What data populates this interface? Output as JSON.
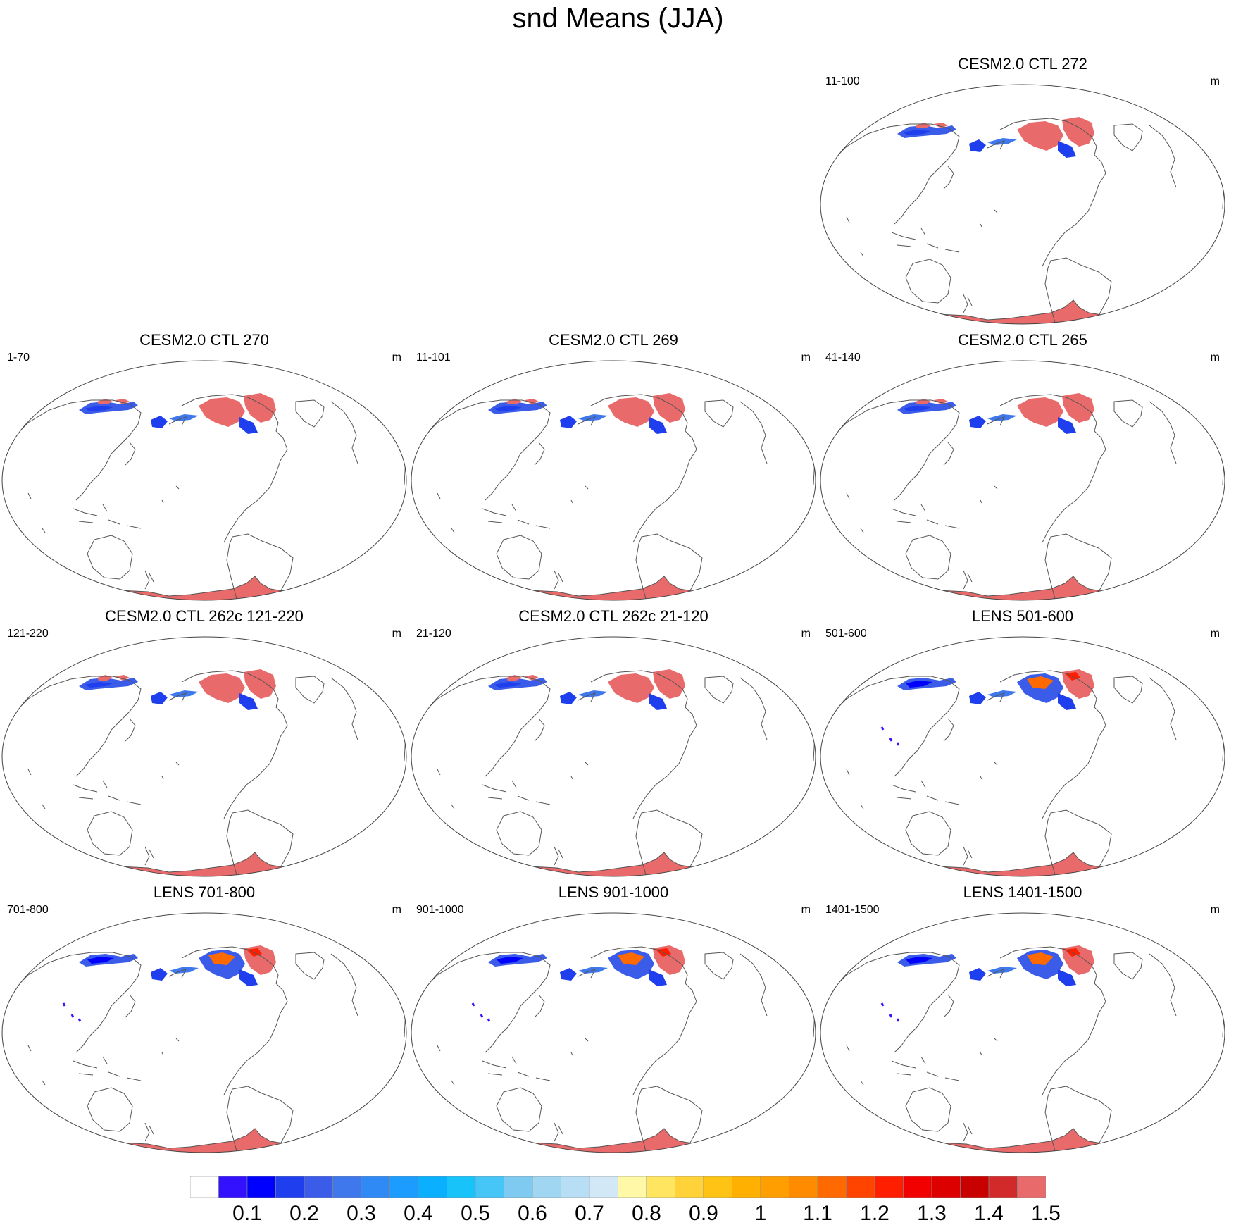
{
  "title": "snd Means (JJA)",
  "chart_data": {
    "type": "heatmap",
    "title": "snd Means (JJA)",
    "variable": "snd",
    "units": "m",
    "projection": "Robinson (Pacific-centered)",
    "colorbar": {
      "labels": [
        "0.1",
        "0.2",
        "0.3",
        "0.4",
        "0.5",
        "0.6",
        "0.7",
        "0.8",
        "0.9",
        "1",
        "1.1",
        "1.2",
        "1.3",
        "1.4",
        "1.5"
      ],
      "colors": [
        "#ffffff",
        "#3311ff",
        "#0000ff",
        "#1f3fee",
        "#3a5ce8",
        "#3f78ec",
        "#2f8af5",
        "#1c9cff",
        "#0ab0fd",
        "#18c3fa",
        "#46c5f7",
        "#7fcaf0",
        "#a0d6f2",
        "#b8def5",
        "#d2e8f6",
        "#fff8a6",
        "#ffe560",
        "#ffd23a",
        "#ffc316",
        "#ffb000",
        "#ff9e00",
        "#ff8c00",
        "#ff6a00",
        "#ff4400",
        "#ff1f00",
        "#f20000",
        "#dc0000",
        "#c80000",
        "#d22a2a",
        "#e86a6a"
      ]
    },
    "panels": [
      {
        "title": "CESM2.0 CTL 272",
        "years": "11-100",
        "units": "m",
        "style": "ctl"
      },
      {
        "title": "CESM2.0 CTL 270",
        "years": "1-70",
        "units": "m",
        "style": "ctl"
      },
      {
        "title": "CESM2.0 CTL 269",
        "years": "11-101",
        "units": "m",
        "style": "ctl"
      },
      {
        "title": "CESM2.0 CTL 265",
        "years": "41-140",
        "units": "m",
        "style": "ctl"
      },
      {
        "title": "CESM2.0 CTL 262c 121-220",
        "years": "121-220",
        "units": "m",
        "style": "ctl"
      },
      {
        "title": "CESM2.0 CTL 262c 21-120",
        "years": "21-120",
        "units": "m",
        "style": "ctl"
      },
      {
        "title": "LENS 501-600",
        "years": "501-600",
        "units": "m",
        "style": "lens"
      },
      {
        "title": "LENS 701-800",
        "years": "701-800",
        "units": "m",
        "style": "lens"
      },
      {
        "title": "LENS 901-1000",
        "years": "901-1000",
        "units": "m",
        "style": "lens"
      },
      {
        "title": "LENS 1401-1500",
        "years": "1401-1500",
        "units": "m",
        "style": "lens"
      }
    ]
  }
}
